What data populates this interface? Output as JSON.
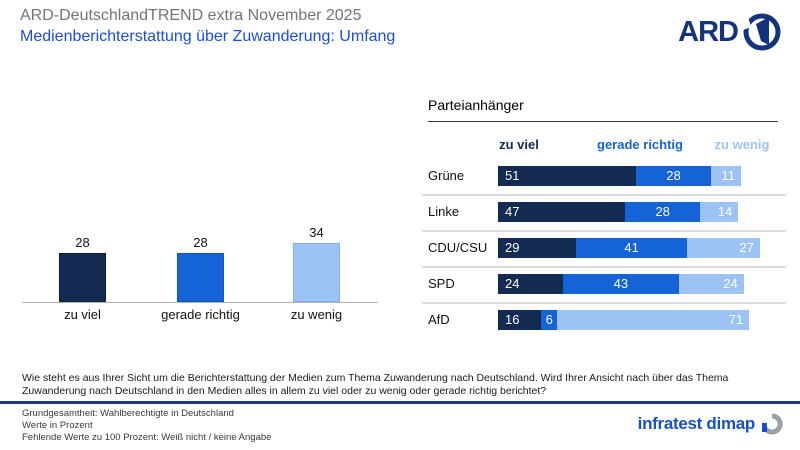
{
  "header": {
    "supertitle": "ARD-DeutschlandTREND extra November 2025",
    "title": "Medienberichterstattung über Zuwanderung: Umfang",
    "ard_logo_text": "ARD"
  },
  "colors": {
    "dark": "#132b52",
    "medium": "#1464d8",
    "light": "#9dc3f4",
    "title_blue": "#1b4ed8",
    "supertitle_gray": "#747474",
    "ard_navy": "#13337f",
    "brand_blue": "#1850c8"
  },
  "chart_data": [
    {
      "type": "bar",
      "title": "",
      "categories": [
        "zu viel",
        "gerade richtig",
        "zu wenig"
      ],
      "values": [
        28,
        28,
        34
      ],
      "unit": "Prozent",
      "ylim": [
        0,
        40
      ],
      "grid": false
    },
    {
      "type": "bar",
      "subtype": "horizontal-stacked",
      "title": "Parteianhänger",
      "legend": [
        "zu viel",
        "gerade richtig",
        "zu wenig"
      ],
      "legend_position": "top",
      "categories": [
        "Grüne",
        "Linke",
        "CDU/CSU",
        "SPD",
        "AfD"
      ],
      "series": [
        {
          "name": "zu viel",
          "values": [
            51,
            47,
            29,
            24,
            16
          ]
        },
        {
          "name": "gerade richtig",
          "values": [
            28,
            28,
            41,
            43,
            6
          ]
        },
        {
          "name": "zu wenig",
          "values": [
            11,
            14,
            27,
            24,
            71
          ]
        }
      ],
      "xlim": [
        0,
        100
      ],
      "unit": "Prozent"
    }
  ],
  "question": "Wie steht es aus Ihrer Sicht um die Berichterstattung der Medien zum Thema Zuwanderung nach Deutschland. Wird Ihrer Ansicht nach über das Thema Zuwanderung nach Deutschland in den Medien alles in allem zu viel oder zu wenig oder gerade richtig berichtet?",
  "footer": {
    "lines": [
      "Grundgesamtheit: Wahlberechtigte in Deutschland",
      "Werte in Prozent",
      "Fehlende Werte zu 100 Prozent: Weiß nicht / keine Angabe"
    ],
    "brand": "infratest dimap"
  }
}
